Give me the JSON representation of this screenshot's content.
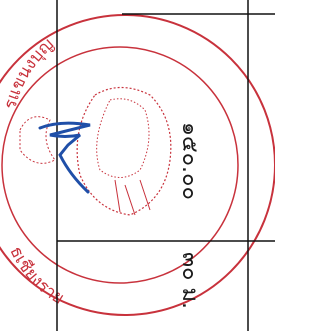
{
  "stamp": {
    "top_text": "รแขนงบุญ",
    "bottom_text": "ธเชียงราย"
  },
  "amount": "๑๕๐.๐๐",
  "note": "๓๐ ม."
}
